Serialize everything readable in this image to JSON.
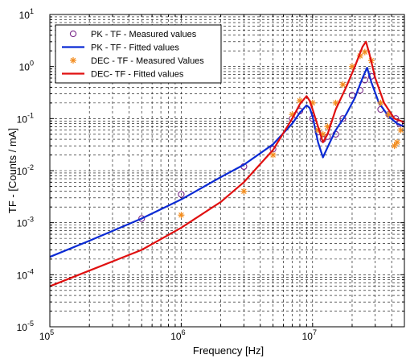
{
  "chart_data": {
    "type": "line",
    "xlabel": "Frequency [Hz]",
    "ylabel": "TF - [Counts / mA]",
    "xscale": "log",
    "yscale": "log",
    "xlim": [
      100000,
      50000000
    ],
    "ylim": [
      1e-05,
      10
    ],
    "grid": true,
    "legend_position": "top-left",
    "x_tick_labels": [
      {
        "value": 100000,
        "base": "10",
        "exp": "5"
      },
      {
        "value": 1000000,
        "base": "10",
        "exp": "6"
      },
      {
        "value": 10000000,
        "base": "10",
        "exp": "7"
      }
    ],
    "y_tick_labels": [
      {
        "value": 1e-05,
        "base": "10",
        "exp": "-5"
      },
      {
        "value": 0.0001,
        "base": "10",
        "exp": "-4"
      },
      {
        "value": 0.001,
        "base": "10",
        "exp": "-3"
      },
      {
        "value": 0.01,
        "base": "10",
        "exp": "-2"
      },
      {
        "value": 0.1,
        "base": "10",
        "exp": "-1"
      },
      {
        "value": 1,
        "base": "10",
        "exp": "0"
      },
      {
        "value": 10,
        "base": "10",
        "exp": "1"
      }
    ],
    "series": [
      {
        "name": "PK - TF - Measured values",
        "style": "marker-circle",
        "color": "#7a2a8a",
        "points": [
          [
            500000,
            0.0012
          ],
          [
            1000000,
            0.0035
          ],
          [
            3000000,
            0.012
          ],
          [
            5000000,
            0.026
          ],
          [
            7000000,
            0.1
          ],
          [
            8000000,
            0.14
          ],
          [
            10000000,
            0.1
          ],
          [
            11000000,
            0.055
          ],
          [
            12000000,
            0.04
          ],
          [
            13000000,
            0.045
          ],
          [
            15000000,
            0.05
          ],
          [
            17000000,
            0.1
          ],
          [
            20000000,
            0.28
          ],
          [
            23000000,
            0.35
          ],
          [
            25000000,
            0.55
          ],
          [
            28000000,
            0.65
          ],
          [
            33000000,
            0.15
          ],
          [
            38000000,
            0.12
          ],
          [
            43000000,
            0.1
          ],
          [
            46000000,
            0.08
          ]
        ]
      },
      {
        "name": "PK - TF - Fitted values",
        "style": "line",
        "color": "#0a2ad4",
        "points": [
          [
            100000,
            0.00022
          ],
          [
            200000,
            0.00045
          ],
          [
            500000,
            0.0012
          ],
          [
            1000000,
            0.0028
          ],
          [
            2000000,
            0.0075
          ],
          [
            3000000,
            0.013
          ],
          [
            5000000,
            0.032
          ],
          [
            7000000,
            0.08
          ],
          [
            8000000,
            0.13
          ],
          [
            9000000,
            0.18
          ],
          [
            9500000,
            0.16
          ],
          [
            10000000,
            0.11
          ],
          [
            11000000,
            0.035
          ],
          [
            12000000,
            0.018
          ],
          [
            13000000,
            0.028
          ],
          [
            15000000,
            0.06
          ],
          [
            18000000,
            0.12
          ],
          [
            21000000,
            0.25
          ],
          [
            24000000,
            0.6
          ],
          [
            26000000,
            0.95
          ],
          [
            28000000,
            0.5
          ],
          [
            32000000,
            0.2
          ],
          [
            38000000,
            0.11
          ],
          [
            44000000,
            0.08
          ],
          [
            50000000,
            0.07
          ]
        ]
      },
      {
        "name": "DEC - TF - Measured Values",
        "style": "marker-star",
        "color": "#f28c1e",
        "points": [
          [
            1000000,
            0.0014
          ],
          [
            3000000,
            0.004
          ],
          [
            5000000,
            0.02
          ],
          [
            7000000,
            0.12
          ],
          [
            8000000,
            0.22
          ],
          [
            10000000,
            0.2
          ],
          [
            11000000,
            0.06
          ],
          [
            12000000,
            0.05
          ],
          [
            13000000,
            0.07
          ],
          [
            15000000,
            0.2
          ],
          [
            17000000,
            0.45
          ],
          [
            20000000,
            1.0
          ],
          [
            23000000,
            1.6
          ],
          [
            25000000,
            1.9
          ],
          [
            28000000,
            1.3
          ],
          [
            33000000,
            0.2
          ],
          [
            38000000,
            0.12
          ],
          [
            42000000,
            0.03
          ],
          [
            44000000,
            0.035
          ],
          [
            47000000,
            0.06
          ]
        ]
      },
      {
        "name": "DEC- TF - Fitted values",
        "style": "line",
        "color": "#e01010",
        "points": [
          [
            100000,
            6e-05
          ],
          [
            200000,
            0.00012
          ],
          [
            500000,
            0.0003
          ],
          [
            1000000,
            0.0008
          ],
          [
            2000000,
            0.0025
          ],
          [
            3000000,
            0.006
          ],
          [
            5000000,
            0.025
          ],
          [
            7000000,
            0.1
          ],
          [
            8000000,
            0.19
          ],
          [
            9000000,
            0.27
          ],
          [
            9500000,
            0.22
          ],
          [
            10000000,
            0.15
          ],
          [
            11000000,
            0.07
          ],
          [
            12000000,
            0.035
          ],
          [
            13000000,
            0.05
          ],
          [
            15000000,
            0.15
          ],
          [
            18000000,
            0.4
          ],
          [
            21000000,
            1.0
          ],
          [
            24000000,
            2.4
          ],
          [
            25500000,
            3.0
          ],
          [
            27000000,
            1.8
          ],
          [
            30000000,
            0.6
          ],
          [
            35000000,
            0.2
          ],
          [
            42000000,
            0.1
          ],
          [
            50000000,
            0.085
          ]
        ]
      }
    ]
  }
}
